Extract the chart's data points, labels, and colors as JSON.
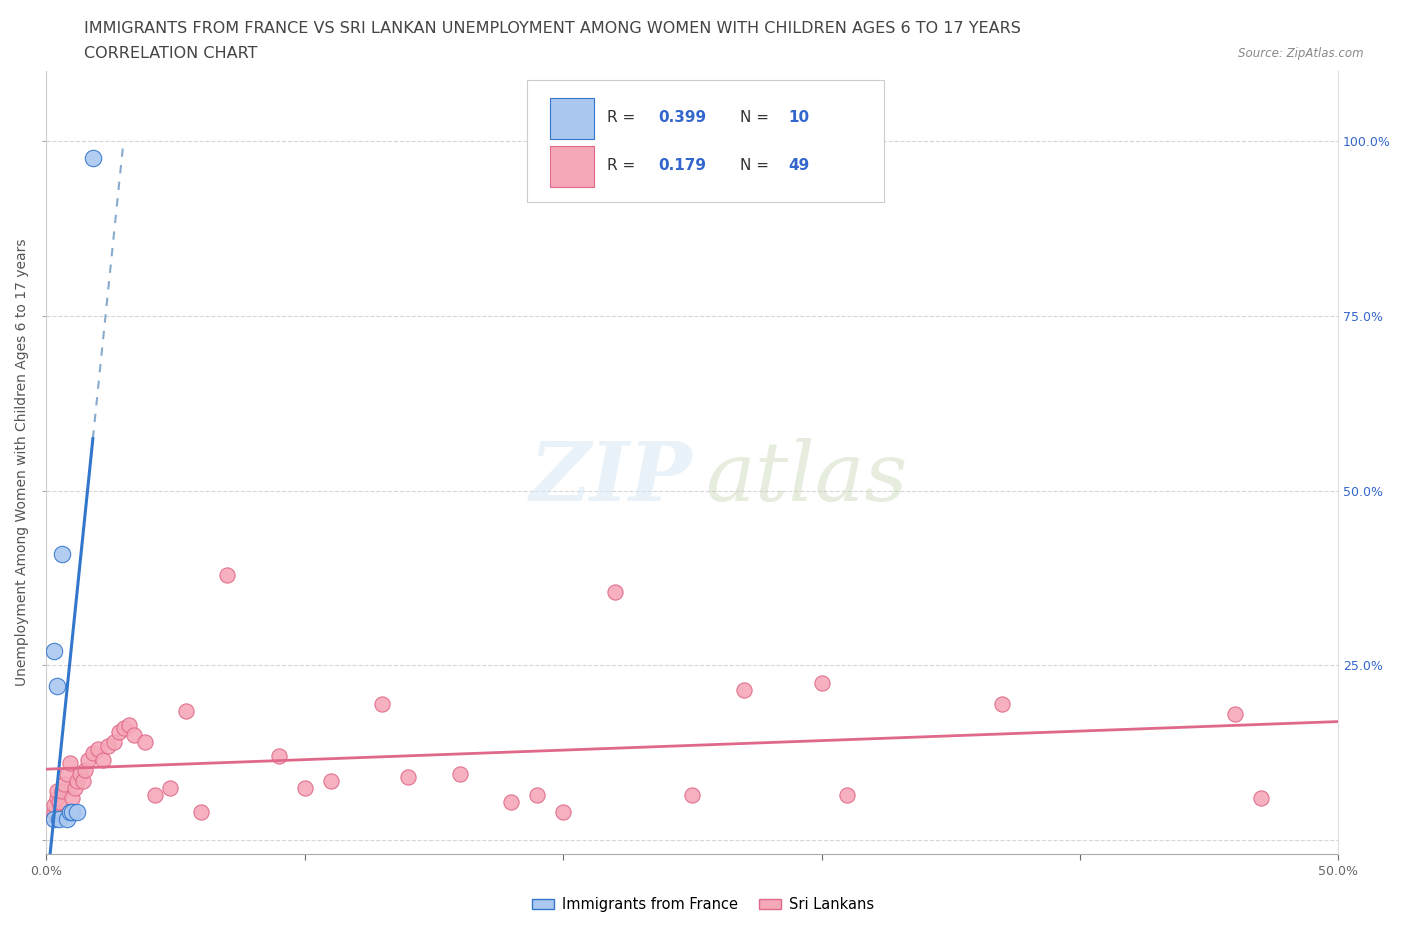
{
  "title": "IMMIGRANTS FROM FRANCE VS SRI LANKAN UNEMPLOYMENT AMONG WOMEN WITH CHILDREN AGES 6 TO 17 YEARS",
  "subtitle": "CORRELATION CHART",
  "source": "Source: ZipAtlas.com",
  "ylabel": "Unemployment Among Women with Children Ages 6 to 17 years",
  "xlim": [
    0.0,
    0.5
  ],
  "ylim": [
    -0.02,
    1.1
  ],
  "xticks": [
    0.0,
    0.1,
    0.2,
    0.3,
    0.4,
    0.5
  ],
  "xticklabels": [
    "0.0%",
    "",
    "",
    "",
    "",
    "50.0%"
  ],
  "yticks_right": [
    0.25,
    0.5,
    0.75,
    1.0
  ],
  "yticklabels_right": [
    "25.0%",
    "50.0%",
    "75.0%",
    "100.0%"
  ],
  "france_r": 0.399,
  "france_n": 10,
  "srilanka_r": 0.179,
  "srilanka_n": 49,
  "france_color": "#aac8f0",
  "srilanka_color": "#f5a8b8",
  "france_line_color": "#3377cc",
  "srilanka_line_color": "#e06888",
  "dashed_line_color": "#88aacc",
  "background_color": "#ffffff",
  "r_label_color": "#3366cc",
  "france_x": [
    0.003,
    0.003,
    0.004,
    0.005,
    0.006,
    0.008,
    0.009,
    0.01,
    0.012,
    0.018
  ],
  "france_y": [
    0.03,
    0.27,
    0.22,
    0.03,
    0.41,
    0.03,
    0.04,
    0.04,
    0.04,
    0.975
  ],
  "srilanka_x": [
    0.003,
    0.003,
    0.003,
    0.004,
    0.004,
    0.005,
    0.006,
    0.007,
    0.008,
    0.009,
    0.01,
    0.011,
    0.012,
    0.013,
    0.014,
    0.015,
    0.016,
    0.018,
    0.02,
    0.022,
    0.024,
    0.026,
    0.028,
    0.03,
    0.032,
    0.034,
    0.038,
    0.042,
    0.048,
    0.054,
    0.06,
    0.07,
    0.09,
    0.1,
    0.11,
    0.13,
    0.14,
    0.16,
    0.18,
    0.19,
    0.2,
    0.22,
    0.25,
    0.27,
    0.3,
    0.31,
    0.37,
    0.46,
    0.47
  ],
  "srilanka_y": [
    0.035,
    0.04,
    0.05,
    0.06,
    0.07,
    0.055,
    0.07,
    0.08,
    0.095,
    0.11,
    0.06,
    0.075,
    0.085,
    0.095,
    0.085,
    0.1,
    0.115,
    0.125,
    0.13,
    0.115,
    0.135,
    0.14,
    0.155,
    0.16,
    0.165,
    0.15,
    0.14,
    0.065,
    0.075,
    0.185,
    0.04,
    0.38,
    0.12,
    0.075,
    0.085,
    0.195,
    0.09,
    0.095,
    0.055,
    0.065,
    0.04,
    0.355,
    0.065,
    0.215,
    0.225,
    0.065,
    0.195,
    0.18,
    0.06
  ],
  "title_fontsize": 11.5,
  "subtitle_fontsize": 11.5,
  "axis_label_fontsize": 10,
  "tick_fontsize": 9
}
